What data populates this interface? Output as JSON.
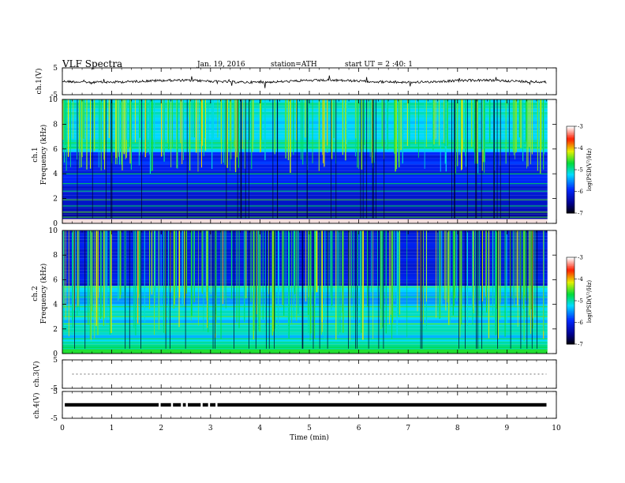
{
  "header": {
    "title": "VLF  Spectra",
    "date": "Jan. 19, 2016",
    "station": "station=ATH",
    "start_ut": "start  UT  =   2  :40: 1"
  },
  "chart_data": {
    "type": "heatmap",
    "xlabel": "Time  (min)",
    "xlim": [
      0,
      10
    ],
    "x_ticks": [
      "0",
      "1",
      "2",
      "3",
      "4",
      "5",
      "6",
      "7",
      "8",
      "9",
      "10"
    ],
    "panels": [
      {
        "name": "ch1-voltage",
        "type": "line",
        "ylabel": "ch.1(V)",
        "ylim": [
          -5,
          5
        ],
        "y_ticks": [
          "5",
          "-5"
        ],
        "approx_level_v": 0
      },
      {
        "name": "ch1-spectrogram",
        "type": "heatmap",
        "ylabel_channel": "ch.1",
        "ylabel": "Frequency  (kHz)",
        "ylim": [
          0,
          10
        ],
        "y_ticks": [
          "0",
          "2",
          "4",
          "6",
          "8",
          "10"
        ],
        "colorbar": {
          "label": "log(PSD(V²/Hz)",
          "range": [
            -7,
            -3
          ],
          "ticks": [
            "-3",
            "-4",
            "-5",
            "-6",
            "-7"
          ]
        }
      },
      {
        "name": "ch2-spectrogram",
        "type": "heatmap",
        "ylabel_channel": "ch.2",
        "ylabel": "Frequency  (kHz)",
        "ylim": [
          0,
          10
        ],
        "y_ticks": [
          "0",
          "2",
          "4",
          "6",
          "8",
          "10"
        ],
        "colorbar": {
          "label": "log(PSD(V²/Hz)",
          "range": [
            -7,
            -3
          ],
          "ticks": [
            "-3",
            "-4",
            "-5",
            "-6",
            "-7"
          ]
        }
      },
      {
        "name": "ch3-voltage",
        "type": "line",
        "ylabel": "ch.3(V)",
        "ylim": [
          -5,
          5
        ],
        "y_ticks": [
          "5",
          "-5"
        ],
        "approx_level_v": 0
      },
      {
        "name": "ch4-voltage",
        "type": "line",
        "ylabel": "ch.4(V)",
        "ylim": [
          -5,
          5
        ],
        "y_ticks": [
          "5",
          "-5"
        ],
        "approx_level_v": 0,
        "dropouts_min": [
          1.95,
          2.2,
          2.4,
          2.5,
          2.8,
          2.95,
          3.1
        ]
      }
    ]
  }
}
